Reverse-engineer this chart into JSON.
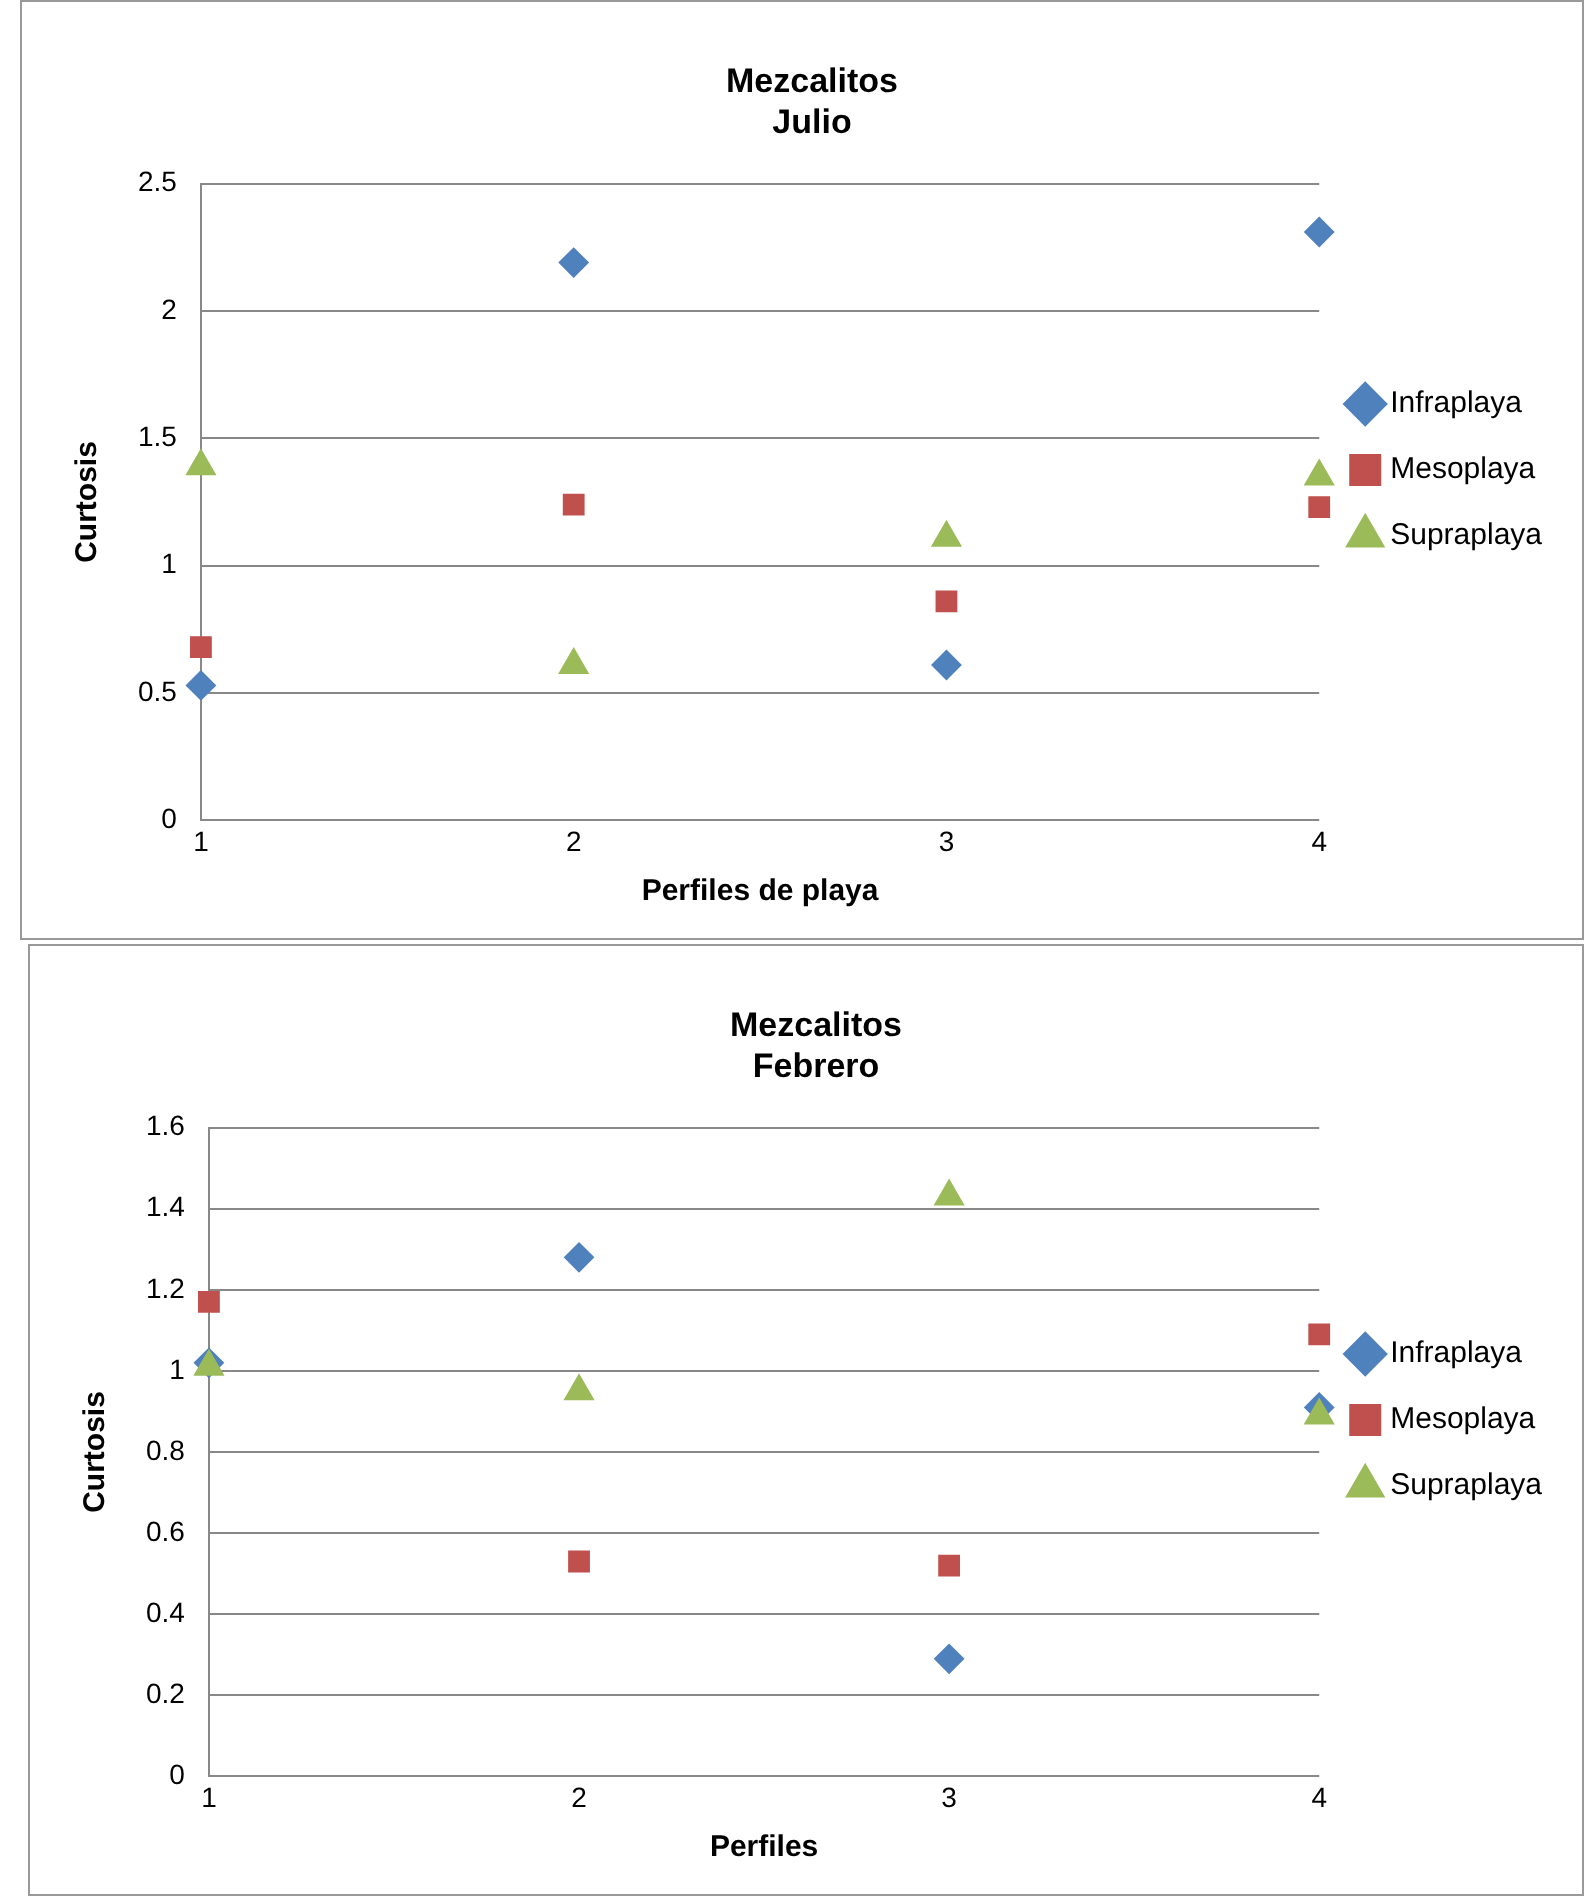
{
  "chart_data": [
    {
      "type": "scatter",
      "title": "Mezcalitos\nJulio",
      "xlabel": "Perfiles de playa",
      "ylabel": "Curtosis",
      "x": [
        1,
        2,
        3,
        4
      ],
      "xlim": [
        1,
        4
      ],
      "xticks": [
        1,
        2,
        3,
        4
      ],
      "ylim": [
        0,
        2.5
      ],
      "yticks": [
        0,
        0.5,
        1,
        1.5,
        2,
        2.5
      ],
      "grid": "y",
      "legend": "right",
      "series": [
        {
          "name": "Infraplaya",
          "color": "#4f81bd",
          "marker": "diamond",
          "values": [
            0.53,
            2.19,
            0.61,
            2.31
          ]
        },
        {
          "name": "Mesoplaya",
          "color": "#c0504d",
          "marker": "square",
          "values": [
            0.68,
            1.24,
            0.86,
            1.23
          ]
        },
        {
          "name": "Supraplaya",
          "color": "#9bbb59",
          "marker": "triangle",
          "values": [
            1.39,
            0.61,
            1.11,
            1.35
          ]
        }
      ]
    },
    {
      "type": "scatter",
      "title": "Mezcalitos\nFebrero",
      "xlabel": "Perfiles",
      "ylabel": "Curtosis",
      "x": [
        1,
        2,
        3,
        4
      ],
      "xlim": [
        1,
        4
      ],
      "xticks": [
        1,
        2,
        3,
        4
      ],
      "ylim": [
        0,
        1.6
      ],
      "yticks": [
        0,
        0.2,
        0.4,
        0.6,
        0.8,
        1,
        1.2,
        1.4,
        1.6
      ],
      "grid": "y",
      "legend": "right",
      "series": [
        {
          "name": "Infraplaya",
          "color": "#4f81bd",
          "marker": "diamond",
          "values": [
            1.02,
            1.28,
            0.29,
            0.91
          ]
        },
        {
          "name": "Mesoplaya",
          "color": "#c0504d",
          "marker": "square",
          "values": [
            1.17,
            0.53,
            0.52,
            1.09
          ]
        },
        {
          "name": "Supraplaya",
          "color": "#9bbb59",
          "marker": "triangle",
          "values": [
            1.01,
            0.95,
            1.43,
            0.89
          ]
        }
      ]
    }
  ]
}
